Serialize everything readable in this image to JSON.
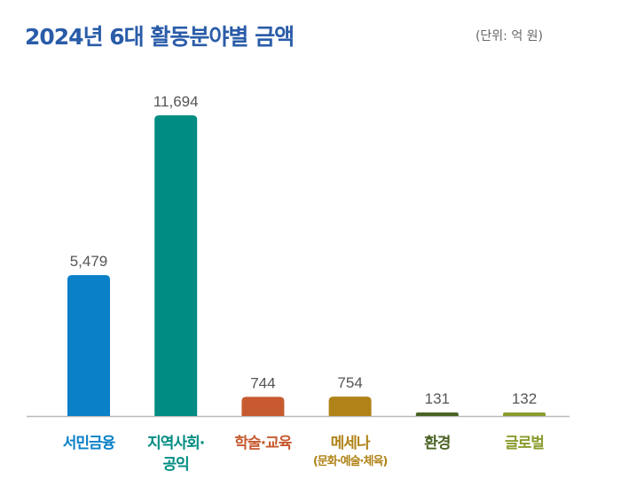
{
  "header": {
    "title": "2024년 6대 활동분야별 금액",
    "unit": "(단위: 억 원)"
  },
  "chart_data": {
    "type": "bar",
    "title": "2024년 6대 활동분야별 금액",
    "unit": "(단위: 억 원)",
    "categories": [
      "서민금융",
      "지역사회·공익",
      "학술·교육",
      "메세나",
      "환경",
      "글로벌"
    ],
    "category_labels": [
      {
        "line1": "서민금융",
        "line2": ""
      },
      {
        "line1": "지역사회·",
        "line2": "공익"
      },
      {
        "line1": "학술·교육",
        "line2": ""
      },
      {
        "line1": "메세나",
        "line2": "(문화·예술·체육)"
      },
      {
        "line1": "환경",
        "line2": ""
      },
      {
        "line1": "글로벌",
        "line2": ""
      }
    ],
    "values": [
      5479,
      11694,
      744,
      754,
      131,
      132
    ],
    "value_labels": [
      "5,479",
      "11,694",
      "744",
      "754",
      "131",
      "132"
    ],
    "colors": [
      "#0a80c8",
      "#008c82",
      "#c75a30",
      "#b08318",
      "#4a6324",
      "#8a9c2e"
    ],
    "grid": false,
    "ylim": [
      0,
      11694
    ]
  }
}
